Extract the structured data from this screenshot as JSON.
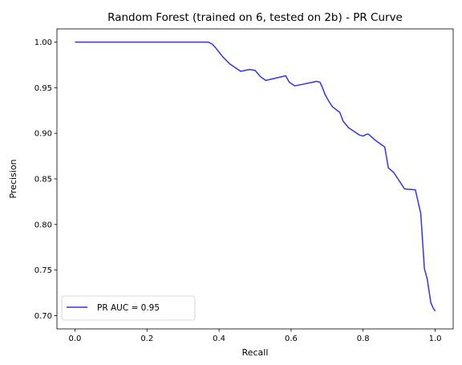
{
  "chart_data": {
    "type": "line",
    "title": "Random Forest (trained on 6, tested on 2b) -  PR Curve",
    "xlabel": "Recall",
    "ylabel": "Precision",
    "xlim": [
      -0.05,
      1.05
    ],
    "ylim": [
      0.6855,
      1.0145
    ],
    "xticks": [
      0.0,
      0.2,
      0.4,
      0.6,
      0.8,
      1.0
    ],
    "xtick_labels": [
      "0.0",
      "0.2",
      "0.4",
      "0.6",
      "0.8",
      "1.0"
    ],
    "yticks": [
      0.7,
      0.75,
      0.8,
      0.85,
      0.9,
      0.95,
      1.0
    ],
    "ytick_labels": [
      "0.70",
      "0.75",
      "0.80",
      "0.85",
      "0.90",
      "0.95",
      "1.00"
    ],
    "grid": false,
    "legend": "lower-left",
    "series": [
      {
        "name": "PR AUC = 0.95",
        "color": "#3535e8",
        "x": [
          0.0,
          0.1,
          0.2,
          0.3,
          0.37,
          0.38,
          0.39,
          0.41,
          0.43,
          0.46,
          0.485,
          0.5,
          0.515,
          0.53,
          0.585,
          0.595,
          0.61,
          0.66,
          0.67,
          0.68,
          0.685,
          0.695,
          0.705,
          0.715,
          0.725,
          0.735,
          0.745,
          0.76,
          0.79,
          0.8,
          0.81,
          0.815,
          0.835,
          0.86,
          0.87,
          0.885,
          0.895,
          0.905,
          0.915,
          0.945,
          0.96,
          0.97,
          0.978,
          0.988,
          0.995,
          1.0
        ],
        "y": [
          1.0,
          1.0,
          1.0,
          1.0,
          1.0,
          0.998,
          0.994,
          0.984,
          0.976,
          0.968,
          0.97,
          0.969,
          0.962,
          0.958,
          0.963,
          0.956,
          0.952,
          0.956,
          0.957,
          0.956,
          0.952,
          0.942,
          0.935,
          0.929,
          0.926,
          0.923,
          0.913,
          0.906,
          0.898,
          0.897,
          0.899,
          0.899,
          0.892,
          0.885,
          0.862,
          0.857,
          0.851,
          0.845,
          0.839,
          0.838,
          0.812,
          0.752,
          0.74,
          0.714,
          0.708,
          0.705
        ]
      }
    ]
  }
}
